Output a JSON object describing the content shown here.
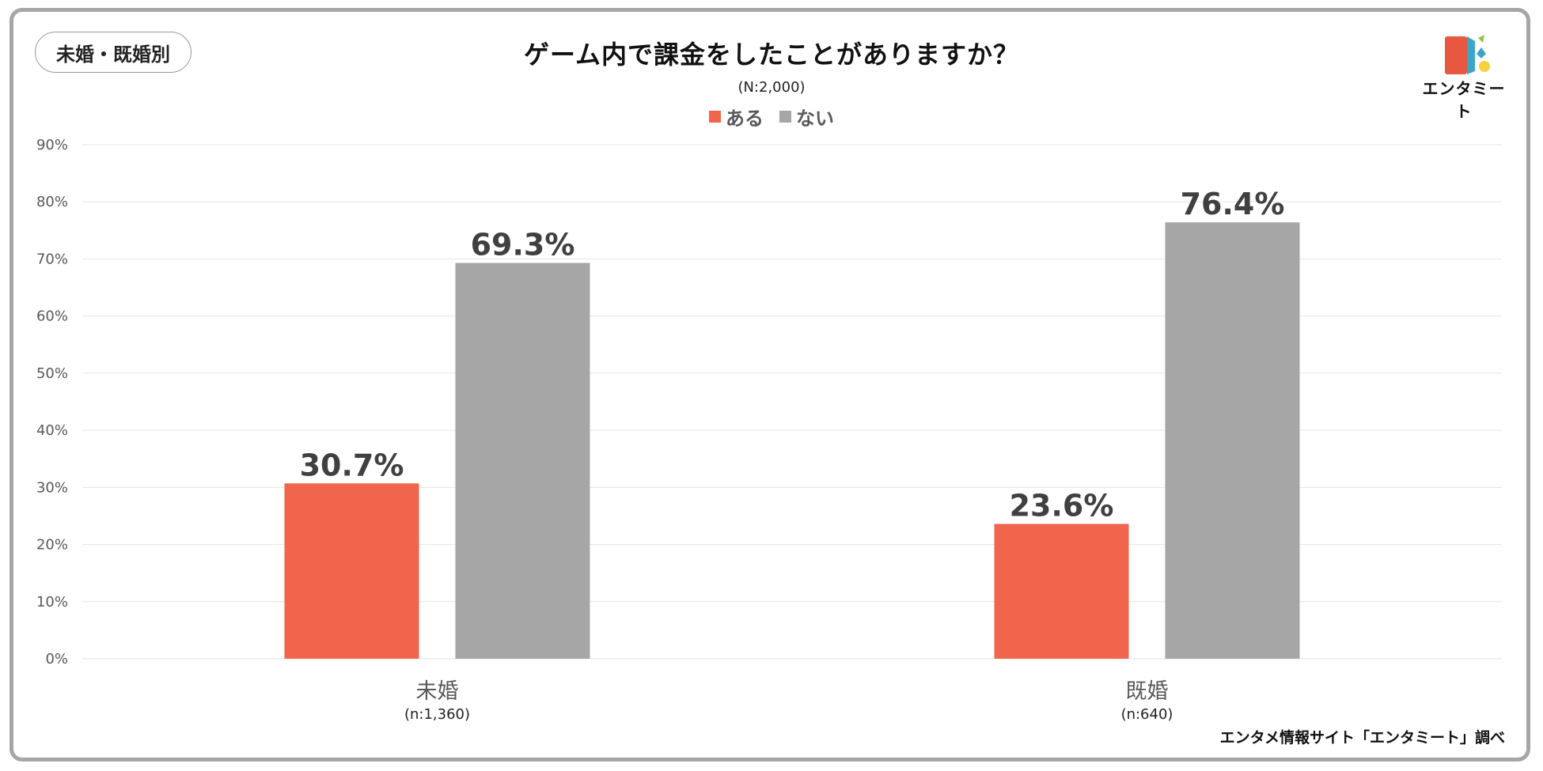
{
  "badge": "未婚・既婚別",
  "logo_text": "エンタミート",
  "source": "エンタメ情報サイト「エンタミート」調べ",
  "colors": {
    "aru": "#f0654c",
    "nai": "#a6a6a6",
    "grid": "#e6e6e6"
  },
  "chart_data": {
    "type": "bar",
    "title": "ゲーム内で課金をしたことがありますか？",
    "subtitle": "(N:2,000)",
    "categories": [
      "未婚",
      "既婚"
    ],
    "category_sublabels": [
      "(n:1,360)",
      "(n:640)"
    ],
    "series": [
      {
        "name": "ある",
        "values": [
          30.7,
          23.6
        ],
        "labels": [
          "30.7%",
          "23.6%"
        ]
      },
      {
        "name": "ない",
        "values": [
          69.3,
          76.4
        ],
        "labels": [
          "69.3%",
          "76.4%"
        ]
      }
    ],
    "ylim": [
      0,
      90
    ],
    "yticks": [
      "0%",
      "10%",
      "20%",
      "30%",
      "40%",
      "50%",
      "60%",
      "70%",
      "80%",
      "90%"
    ],
    "grid": true,
    "legend_position": "top-center"
  }
}
